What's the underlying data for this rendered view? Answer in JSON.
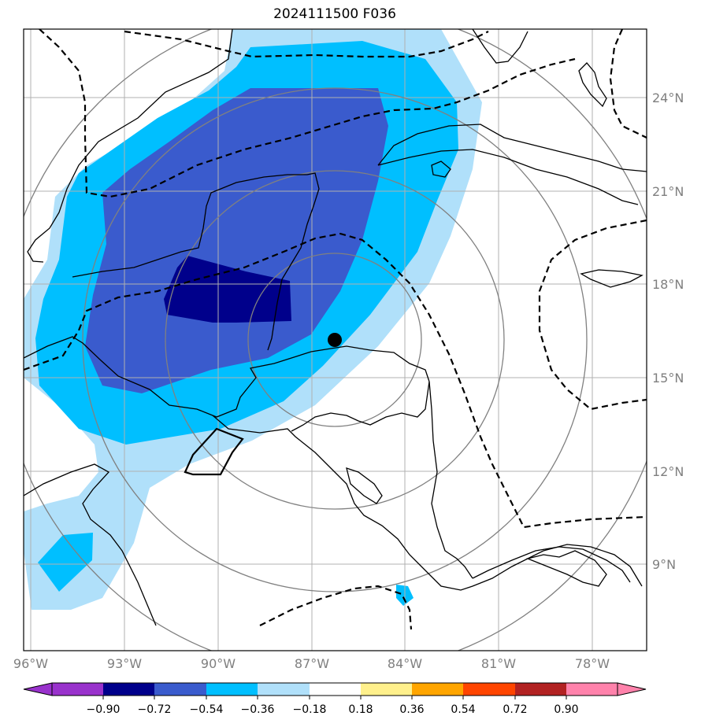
{
  "title": "2024111500 F036",
  "colors": {
    "neg_090": "#00008b",
    "neg_072": "#3a5bcd",
    "neg_054": "#00bfff",
    "neg_036": "#b0e0fa",
    "grid": "#b0b0b0",
    "range_rings": "#808080",
    "coastline": "#000000",
    "tick_label": "#7f7f7f"
  },
  "map": {
    "lon_range": [
      -96.2,
      -76.4
    ],
    "lat_range": [
      6.8,
      26.5
    ],
    "lon_ticks": [
      "96°W",
      "93°W",
      "90°W",
      "87°W",
      "84°W",
      "81°W",
      "78°W"
    ],
    "lat_ticks": [
      "24°N",
      "21°N",
      "18°N",
      "15°N",
      "12°N",
      "9°N"
    ],
    "storm_center": {
      "lon": -85.8,
      "lat": 16.3
    }
  },
  "colorbar": {
    "labels": [
      "−0.90",
      "−0.72",
      "−0.54",
      "−0.36",
      "−0.18",
      "0.18",
      "0.36",
      "0.54",
      "0.72",
      "0.90"
    ],
    "colors": [
      "#9932cc",
      "#00008b",
      "#3a5bcd",
      "#00bfff",
      "#b0e0fa",
      "#ffffff",
      "#fff08c",
      "#ffa500",
      "#ff4500",
      "#b22222",
      "#ff82ab",
      "#ff82ab"
    ]
  }
}
